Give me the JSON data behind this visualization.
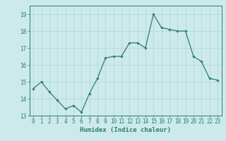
{
  "x": [
    0,
    1,
    2,
    3,
    4,
    5,
    6,
    7,
    8,
    9,
    10,
    11,
    12,
    13,
    14,
    15,
    16,
    17,
    18,
    19,
    20,
    21,
    22,
    23
  ],
  "y": [
    14.6,
    15.0,
    14.4,
    13.9,
    13.4,
    13.6,
    13.2,
    14.3,
    15.2,
    16.4,
    16.5,
    16.5,
    17.3,
    17.3,
    17.0,
    19.0,
    18.2,
    18.1,
    18.0,
    18.0,
    16.5,
    16.2,
    15.2,
    15.1
  ],
  "line_color": "#2e7d6e",
  "marker": "D",
  "marker_size": 1.8,
  "bg_color": "#cceaea",
  "grid_color": "#b0d4d4",
  "xlabel": "Humidex (Indice chaleur)",
  "xlabel_color": "#2e7d6e",
  "tick_color": "#2e7d6e",
  "axis_color": "#2e7d6e",
  "ylim": [
    13,
    19.5
  ],
  "xlim": [
    -0.5,
    23.5
  ],
  "yticks": [
    13,
    14,
    15,
    16,
    17,
    18,
    19
  ],
  "xticks": [
    0,
    1,
    2,
    3,
    4,
    5,
    6,
    7,
    8,
    9,
    10,
    11,
    12,
    13,
    14,
    15,
    16,
    17,
    18,
    19,
    20,
    21,
    22,
    23
  ],
  "xlabel_fontsize": 6.5,
  "tick_fontsize": 5.5,
  "line_width": 0.9
}
